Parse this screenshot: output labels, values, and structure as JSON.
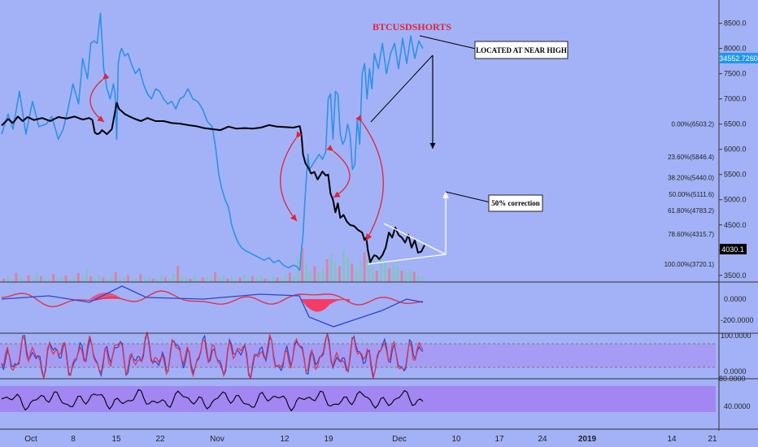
{
  "chart_data": {
    "type": "line",
    "symbol_label": "BTCUSDSHORTS",
    "annotations": {
      "top": "LOCATED AT NEAR HIGH",
      "mid": "50% correction"
    },
    "price_axis": {
      "ticks": [
        "8500.0",
        "8000.0",
        "7500.0",
        "7000.0",
        "6500.0",
        "6000.0",
        "5500.0",
        "5000.0",
        "4500.0",
        "4000.0",
        "3500.0"
      ],
      "ylim": [
        3400,
        8800
      ]
    },
    "fib_levels": [
      {
        "label": "0.00%(6503.2)",
        "value": 6503.2
      },
      {
        "label": "23.60%(5846.4)",
        "value": 5846.4
      },
      {
        "label": "38.20%(5440.0)",
        "value": 5440.0
      },
      {
        "label": "50.00%(5111.6)",
        "value": 5111.6
      },
      {
        "label": "61.80%(4783.2)",
        "value": 4783.2
      },
      {
        "label": "78.60%(4315.7)",
        "value": 4315.7
      },
      {
        "label": "100.00%(3720.1)",
        "value": 3720.1
      }
    ],
    "price_tags": {
      "shorts_last": "34552.7260",
      "btc_last": "4030.1",
      "shorts_color": "#2196f3",
      "btc_color": "#000000"
    },
    "x_axis": {
      "ticks": [
        "Oct",
        "8",
        "15",
        "22",
        "Nov",
        "12",
        "19",
        "Dec",
        "10",
        "17",
        "24",
        "2019",
        "14",
        "21"
      ]
    },
    "series": [
      {
        "name": "BTCUSD",
        "color": "#000000",
        "x": [
          0,
          8,
          14,
          20,
          26,
          32,
          40,
          50,
          60,
          70,
          80,
          90,
          100,
          108,
          112,
          115,
          118,
          121,
          124,
          130,
          136,
          142,
          145,
          148,
          152,
          158,
          165,
          172,
          180,
          190,
          200,
          210,
          220,
          230,
          240,
          250,
          260,
          270,
          280,
          290,
          300,
          310,
          320,
          330,
          340,
          350,
          360,
          368,
          370,
          372,
          375,
          378,
          382,
          386,
          390,
          396,
          400,
          403,
          406,
          409,
          412,
          415,
          418,
          422,
          426,
          430,
          435,
          440,
          445,
          448,
          450,
          452,
          455,
          458,
          460,
          463,
          466,
          470,
          474,
          478,
          482,
          486,
          490,
          494,
          498,
          502,
          506,
          510,
          514,
          518,
          522
        ],
        "y": [
          6470,
          6600,
          6520,
          6650,
          6560,
          6640,
          6580,
          6620,
          6560,
          6640,
          6610,
          6650,
          6590,
          6620,
          6580,
          6330,
          6300,
          6320,
          6380,
          6300,
          6400,
          6920,
          6800,
          6760,
          6700,
          6650,
          6600,
          6560,
          6620,
          6560,
          6560,
          6520,
          6510,
          6480,
          6460,
          6420,
          6400,
          6380,
          6450,
          6410,
          6420,
          6410,
          6430,
          6480,
          6450,
          6440,
          6430,
          6460,
          6300,
          5900,
          5720,
          5650,
          5520,
          5550,
          5400,
          5560,
          5480,
          5500,
          5120,
          5000,
          4750,
          4930,
          4640,
          4700,
          4570,
          4500,
          4480,
          4400,
          4350,
          4200,
          4250,
          4000,
          3760,
          3850,
          3900,
          3880,
          3820,
          3900,
          4050,
          4350,
          4250,
          4450,
          4300,
          4250,
          4150,
          4300,
          4050,
          4200,
          3950,
          3970,
          4100
        ]
      },
      {
        "name": "BTCUSDSHORTS",
        "color": "#2f90e8",
        "x": [
          0,
          8,
          14,
          22,
          30,
          38,
          46,
          55,
          62,
          70,
          76,
          82,
          88,
          95,
          100,
          106,
          110,
          114,
          118,
          122,
          126,
          130,
          134,
          138,
          140,
          142,
          144,
          146,
          148,
          152,
          156,
          160,
          165,
          170,
          175,
          180,
          185,
          190,
          195,
          200,
          205,
          210,
          215,
          220,
          225,
          230,
          236,
          242,
          248,
          254,
          260,
          264,
          268,
          272,
          276,
          280,
          284,
          288,
          292,
          296,
          300,
          306,
          312,
          318,
          324,
          330,
          336,
          342,
          348,
          354,
          360,
          364,
          368,
          370,
          372,
          374,
          376,
          378,
          380,
          384,
          388,
          392,
          396,
          400,
          403,
          406,
          409,
          412,
          415,
          418,
          421,
          424,
          427,
          430,
          433,
          436,
          439,
          442,
          445,
          448,
          451,
          454,
          457,
          460,
          465,
          470,
          475,
          480,
          485,
          490,
          495,
          500,
          505,
          510,
          515,
          520
        ],
        "y": [
          6300,
          6700,
          6400,
          7150,
          6300,
          6950,
          6450,
          6500,
          6650,
          6200,
          6400,
          6800,
          7300,
          6900,
          7800,
          7400,
          8100,
          8150,
          8100,
          8700,
          7600,
          7200,
          7000,
          7300,
          7100,
          6200,
          7700,
          7900,
          8000,
          7850,
          7900,
          7700,
          7500,
          7600,
          7300,
          7100,
          7000,
          7200,
          7150,
          7000,
          6900,
          6950,
          6800,
          7000,
          7050,
          7200,
          7000,
          6950,
          6800,
          6550,
          6450,
          6050,
          5500,
          5200,
          5000,
          4850,
          4500,
          4300,
          4150,
          4050,
          4000,
          3950,
          3900,
          3850,
          3800,
          3850,
          3750,
          3800,
          3700,
          3650,
          3700,
          3680,
          3600,
          4000,
          4300,
          4900,
          5400,
          5900,
          5600,
          5700,
          5800,
          5900,
          5800,
          5950,
          7000,
          7100,
          6200,
          7150,
          7100,
          6300,
          6100,
          6200,
          6500,
          6300,
          5600,
          5700,
          6600,
          6100,
          7500,
          7700,
          7000,
          7600,
          7200,
          7900,
          7600,
          8100,
          7500,
          7900,
          8100,
          7600,
          8200,
          7700,
          8250,
          7800,
          8150,
          8000
        ]
      }
    ],
    "volume": [
      3,
      5,
      2,
      8,
      4,
      2,
      6,
      3,
      9,
      5,
      4,
      2,
      7,
      3,
      5,
      6,
      2,
      4,
      8,
      3,
      12,
      5,
      3,
      6,
      4,
      2,
      5,
      9,
      3,
      4,
      6,
      2,
      3,
      7,
      4,
      5,
      3,
      2,
      6,
      4,
      3,
      8,
      14,
      5,
      4,
      3,
      6,
      2,
      4,
      5,
      3,
      9,
      4,
      6,
      3,
      5,
      2,
      4,
      7,
      3,
      5,
      4,
      6,
      3,
      2,
      5,
      4,
      3,
      6,
      8,
      5,
      22,
      30,
      16,
      10,
      14,
      9,
      12,
      20,
      25,
      18,
      14,
      28,
      22,
      16,
      12,
      18,
      26,
      20,
      14,
      10,
      22,
      18,
      12,
      16,
      14,
      10,
      8,
      12,
      9,
      6,
      5
    ]
  },
  "macd": {
    "ticks": [
      "0.0000",
      "-200.0000"
    ],
    "macd_color": "#2f44c8",
    "signal_color": "#e0324a"
  },
  "stoch": {
    "ticks": [
      "100.0000",
      "0.0000"
    ]
  },
  "rsi": {
    "ticks": [
      "80.0000",
      "40.0000"
    ]
  }
}
